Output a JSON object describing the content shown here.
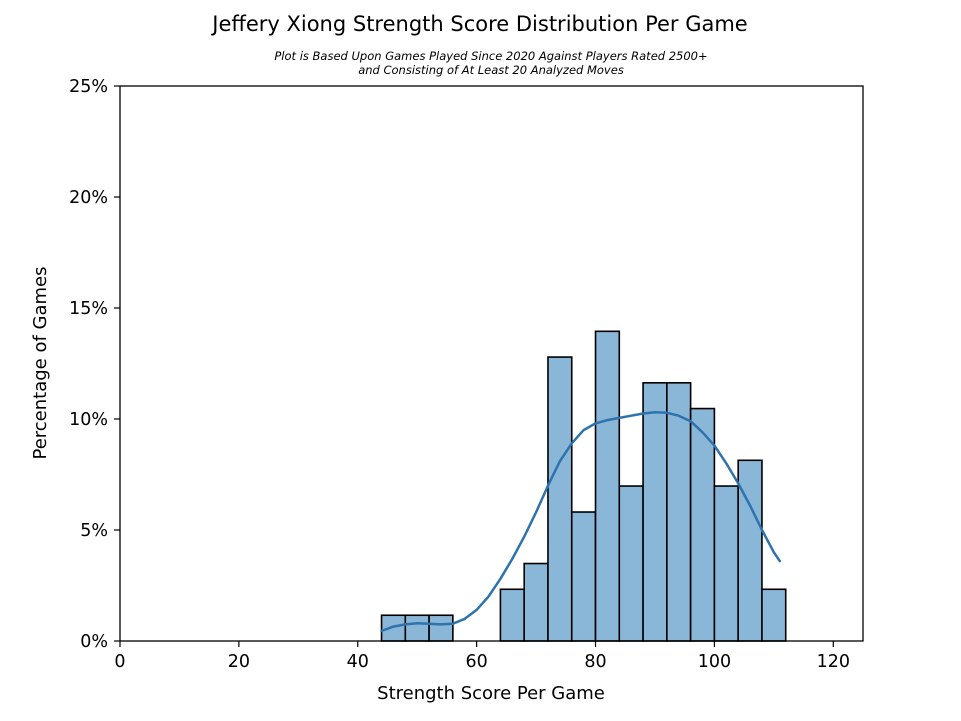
{
  "chart_data": {
    "type": "bar",
    "title": "Jeffery Xiong Strength Score Distribution Per Game",
    "subtitle_lines": [
      "Plot is Based Upon Games Played Since 2020 Against Players Rated 2500+",
      "and Consisting of At Least 20 Analyzed Moves"
    ],
    "xlabel": "Strength Score Per Game",
    "ylabel": "Percentage of Games",
    "xlim": [
      0,
      125
    ],
    "ylim": [
      0,
      25
    ],
    "x_ticks": [
      0,
      20,
      40,
      60,
      80,
      100,
      120
    ],
    "x_tick_labels": [
      "0",
      "20",
      "40",
      "60",
      "80",
      "100",
      "120"
    ],
    "y_ticks": [
      0,
      5,
      10,
      15,
      20,
      25
    ],
    "y_tick_labels": [
      "0%",
      "5%",
      "10%",
      "15%",
      "20%",
      "25%"
    ],
    "bin_width": 4,
    "bins": [
      {
        "start": 44,
        "end": 48,
        "value": 1.16
      },
      {
        "start": 48,
        "end": 52,
        "value": 1.16
      },
      {
        "start": 52,
        "end": 56,
        "value": 1.16
      },
      {
        "start": 64,
        "end": 68,
        "value": 2.33
      },
      {
        "start": 68,
        "end": 72,
        "value": 3.49
      },
      {
        "start": 72,
        "end": 76,
        "value": 12.79
      },
      {
        "start": 76,
        "end": 80,
        "value": 5.81
      },
      {
        "start": 80,
        "end": 84,
        "value": 13.95
      },
      {
        "start": 84,
        "end": 88,
        "value": 6.98
      },
      {
        "start": 88,
        "end": 92,
        "value": 11.63
      },
      {
        "start": 92,
        "end": 96,
        "value": 11.63
      },
      {
        "start": 96,
        "end": 100,
        "value": 10.47
      },
      {
        "start": 100,
        "end": 104,
        "value": 6.98
      },
      {
        "start": 104,
        "end": 108,
        "value": 8.14
      },
      {
        "start": 108,
        "end": 112,
        "value": 2.33
      }
    ],
    "kde": {
      "name": "KDE",
      "x": [
        44,
        46,
        48,
        50,
        52,
        54,
        56,
        58,
        60,
        62,
        64,
        66,
        68,
        70,
        72,
        74,
        76,
        78,
        80,
        82,
        84,
        86,
        88,
        90,
        92,
        94,
        96,
        98,
        100,
        102,
        104,
        106,
        108,
        110,
        111
      ],
      "y": [
        0.45,
        0.65,
        0.75,
        0.8,
        0.78,
        0.75,
        0.78,
        1.0,
        1.4,
        2.0,
        2.8,
        3.7,
        4.7,
        5.8,
        7.0,
        8.1,
        8.9,
        9.5,
        9.8,
        9.95,
        10.05,
        10.15,
        10.25,
        10.3,
        10.28,
        10.15,
        9.9,
        9.4,
        8.8,
        8.0,
        7.1,
        6.1,
        5.0,
        4.0,
        3.6
      ]
    },
    "grid": false,
    "legend": "none",
    "colors": {
      "bar_fill": "#8ab6d8",
      "bar_edge": "#000000",
      "kde_line": "#2f73ad",
      "axes": "#000000"
    }
  }
}
